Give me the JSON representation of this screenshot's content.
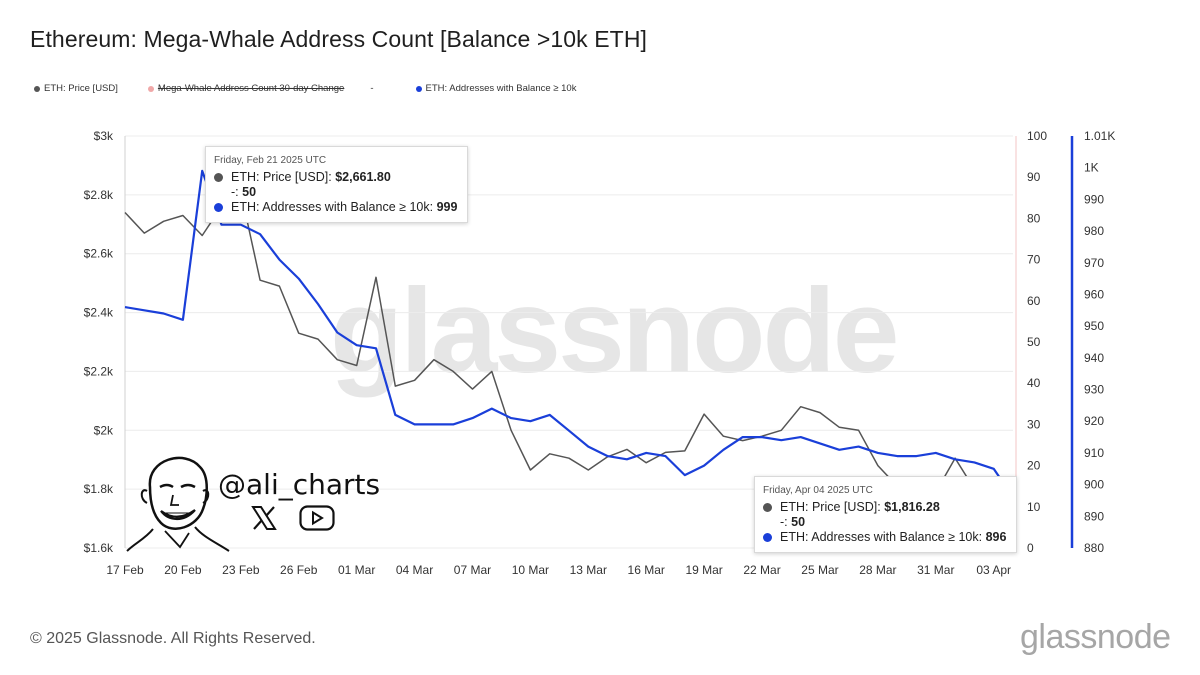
{
  "title": "Ethereum: Mega-Whale Address Count [Balance >10k ETH]",
  "legend": {
    "price_label": "ETH: Price [USD]",
    "change_label": "Mega-Whale Address Count 30-day Change",
    "dash_label": "-",
    "addresses_label": "ETH: Addresses with Balance ≥ 10k"
  },
  "colors": {
    "price": "#555555",
    "addresses": "#1a3fd9",
    "change": "#f0a8a8",
    "axis_right2": "#1a3fd9"
  },
  "watermark": "glassnode",
  "tooltip1": {
    "date": "Friday, Feb 21 2025 UTC",
    "price_label": "ETH: Price [USD]: ",
    "price_value": "$2,661.80",
    "dash_label": "-: ",
    "dash_value": "50",
    "addr_label": "ETH: Addresses with Balance ≥ 10k: ",
    "addr_value": "999"
  },
  "tooltip2": {
    "date": "Friday, Apr 04 2025 UTC",
    "price_label": "ETH: Price [USD]: ",
    "price_value": "$1,816.28",
    "dash_label": "-: ",
    "dash_value": "50",
    "addr_label": "ETH: Addresses with Balance ≥ 10k: ",
    "addr_value": "896"
  },
  "branding": {
    "handle": "@ali_charts",
    "x_icon": "x-logo-icon",
    "youtube_icon": "youtube-icon",
    "avatar_icon": "avatar-sketch-icon"
  },
  "footer": {
    "copyright": "© 2025 Glassnode. All Rights Reserved.",
    "logo": "glassnode"
  },
  "chart_data": {
    "type": "line",
    "x": [
      "2025-02-17",
      "2025-02-18",
      "2025-02-19",
      "2025-02-20",
      "2025-02-21",
      "2025-02-22",
      "2025-02-23",
      "2025-02-24",
      "2025-02-25",
      "2025-02-26",
      "2025-02-27",
      "2025-02-28",
      "2025-03-01",
      "2025-03-02",
      "2025-03-03",
      "2025-03-04",
      "2025-03-05",
      "2025-03-06",
      "2025-03-07",
      "2025-03-08",
      "2025-03-09",
      "2025-03-10",
      "2025-03-11",
      "2025-03-12",
      "2025-03-13",
      "2025-03-14",
      "2025-03-15",
      "2025-03-16",
      "2025-03-17",
      "2025-03-18",
      "2025-03-19",
      "2025-03-20",
      "2025-03-21",
      "2025-03-22",
      "2025-03-23",
      "2025-03-24",
      "2025-03-25",
      "2025-03-26",
      "2025-03-27",
      "2025-03-28",
      "2025-03-29",
      "2025-03-30",
      "2025-03-31",
      "2025-04-01",
      "2025-04-02",
      "2025-04-03",
      "2025-04-04"
    ],
    "x_tick_labels": [
      "17 Feb",
      "20 Feb",
      "23 Feb",
      "26 Feb",
      "01 Mar",
      "04 Mar",
      "07 Mar",
      "10 Mar",
      "13 Mar",
      "16 Mar",
      "19 Mar",
      "22 Mar",
      "25 Mar",
      "28 Mar",
      "31 Mar",
      "03 Apr"
    ],
    "x_tick_dates": [
      "2025-02-17",
      "2025-02-20",
      "2025-02-23",
      "2025-02-26",
      "2025-03-01",
      "2025-03-04",
      "2025-03-07",
      "2025-03-10",
      "2025-03-13",
      "2025-03-16",
      "2025-03-19",
      "2025-03-22",
      "2025-03-25",
      "2025-03-28",
      "2025-03-31",
      "2025-04-03"
    ],
    "y_left": {
      "ticks": [
        "$1.6k",
        "$1.8k",
        "$2k",
        "$2.2k",
        "$2.4k",
        "$2.6k",
        "$2.8k",
        "$3k"
      ],
      "tick_values": [
        1600,
        1800,
        2000,
        2200,
        2400,
        2600,
        2800,
        3000
      ],
      "range": [
        1600,
        3000
      ]
    },
    "y_right1": {
      "ticks": [
        "0",
        "10",
        "20",
        "30",
        "40",
        "50",
        "60",
        "70",
        "80",
        "90",
        "100"
      ],
      "tick_values": [
        0,
        10,
        20,
        30,
        40,
        50,
        60,
        70,
        80,
        90,
        100
      ],
      "range": [
        0,
        100
      ]
    },
    "y_right2": {
      "ticks": [
        "880",
        "890",
        "900",
        "910",
        "920",
        "930",
        "940",
        "950",
        "960",
        "970",
        "980",
        "990",
        "1K",
        "1.01K"
      ],
      "tick_values": [
        880,
        890,
        900,
        910,
        920,
        930,
        940,
        950,
        960,
        970,
        980,
        990,
        1000,
        1010
      ],
      "range": [
        880,
        1010
      ]
    },
    "series": [
      {
        "name": "ETH: Price [USD]",
        "axis": "left",
        "color": "#555555",
        "values": [
          2740,
          2670,
          2710,
          2730,
          2661.8,
          2760,
          2810,
          2510,
          2490,
          2330,
          2310,
          2240,
          2220,
          2520,
          2150,
          2170,
          2240,
          2200,
          2140,
          2200,
          2000,
          1865,
          1920,
          1905,
          1865,
          1910,
          1935,
          1890,
          1925,
          1930,
          2055,
          1980,
          1965,
          1980,
          2000,
          2080,
          2060,
          2010,
          2000,
          1880,
          1810,
          1820,
          1790,
          1905,
          1800,
          1815,
          1816.28
        ]
      },
      {
        "name": "ETH: Addresses with Balance ≥ 10k",
        "axis": "right2",
        "color": "#1a3fd9",
        "values": [
          956,
          955,
          954,
          952,
          999,
          982,
          982,
          979,
          971,
          965,
          957,
          948,
          944,
          943,
          922,
          919,
          919,
          919,
          921,
          924,
          921,
          920,
          922,
          917,
          912,
          909,
          908,
          910,
          909,
          903,
          906,
          911,
          915,
          915,
          914,
          915,
          913,
          911,
          912,
          910,
          909,
          909,
          910,
          908,
          907,
          905,
          896
        ]
      }
    ],
    "grid": true,
    "legend_position": "top-left"
  }
}
